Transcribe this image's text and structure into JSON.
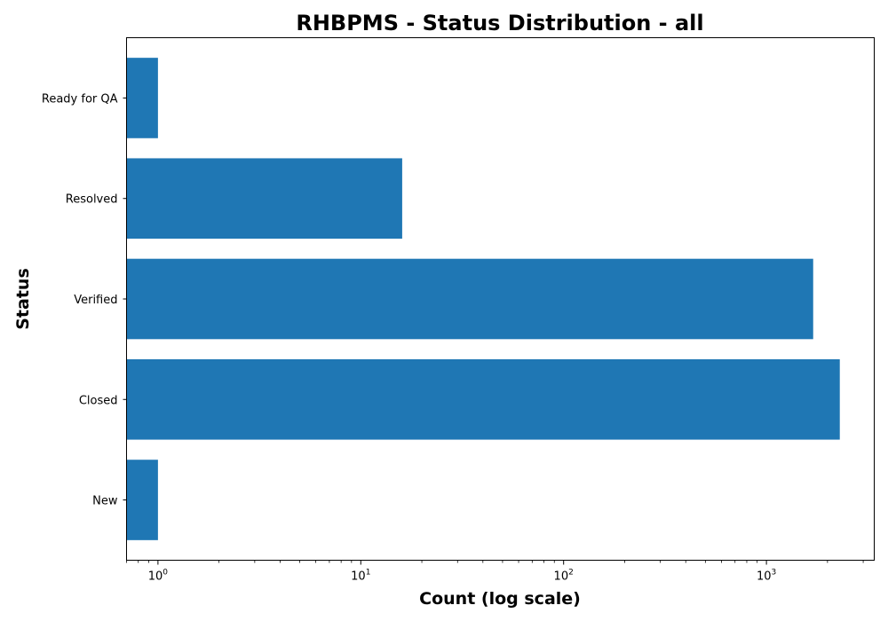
{
  "chart_data": {
    "type": "bar",
    "orientation": "horizontal",
    "title": "RHBPMS - Status Distribution - all",
    "xlabel": "Count (log scale)",
    "ylabel": "Status",
    "xscale": "log",
    "xlim": [
      0.7,
      3400
    ],
    "categories": [
      "New",
      "Closed",
      "Verified",
      "Resolved",
      "Ready for QA"
    ],
    "values": [
      1,
      2300,
      1700,
      16,
      1
    ],
    "bar_color": "#1f77b4",
    "x_ticks": [
      {
        "value": 1,
        "base": "10",
        "exp": "0"
      },
      {
        "value": 10,
        "base": "10",
        "exp": "1"
      },
      {
        "value": 100,
        "base": "10",
        "exp": "2"
      },
      {
        "value": 1000,
        "base": "10",
        "exp": "3"
      }
    ],
    "grid": false,
    "legend": "none"
  }
}
